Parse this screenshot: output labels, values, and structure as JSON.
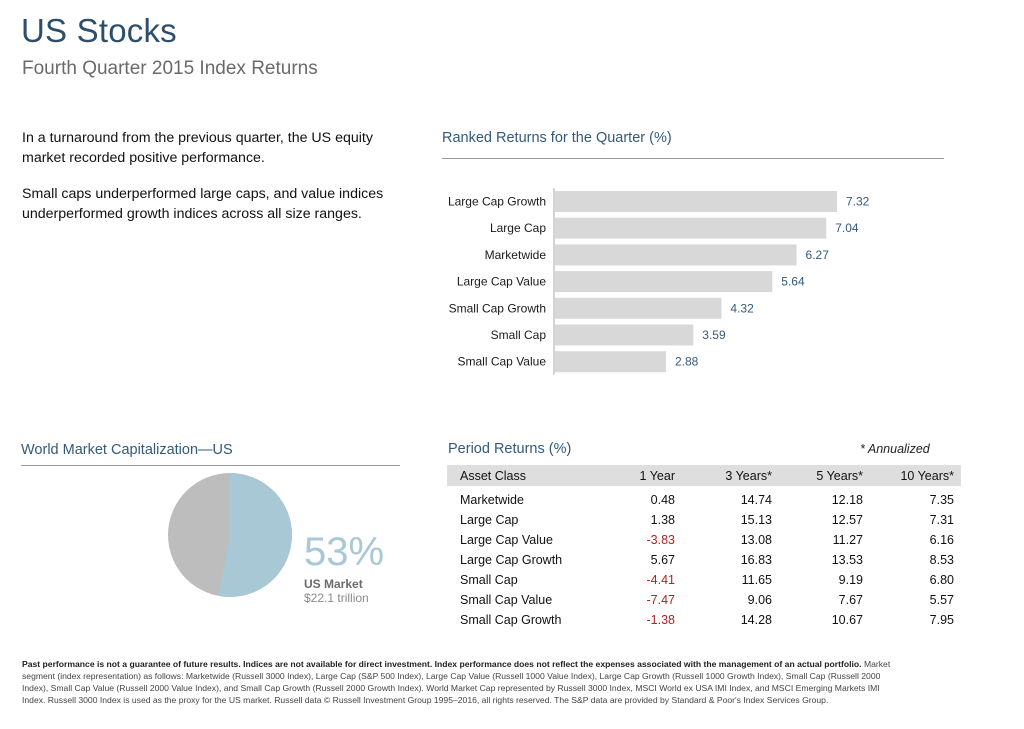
{
  "header": {
    "title": "US Stocks",
    "subtitle": "Fourth Quarter 2015 Index Returns"
  },
  "intro": {
    "p1": "In a turnaround from the previous quarter, the US equity market recorded positive performance.",
    "p2": "Small caps underperformed large caps, and value indices underperformed growth indices across all size ranges."
  },
  "ranked": {
    "heading": "Ranked Returns for the Quarter (%)"
  },
  "chart_data": {
    "type": "bar",
    "orientation": "horizontal",
    "title": "Ranked Returns for the Quarter (%)",
    "categories": [
      "Large Cap Growth",
      "Large Cap",
      "Marketwide",
      "Large Cap Value",
      "Small Cap Growth",
      "Small Cap",
      "Small Cap Value"
    ],
    "values": [
      7.32,
      7.04,
      6.27,
      5.64,
      4.32,
      3.59,
      2.88
    ],
    "value_labels": [
      "7.32",
      "7.04",
      "6.27",
      "5.64",
      "4.32",
      "3.59",
      "2.88"
    ],
    "xlim": [
      0,
      8
    ],
    "grid": false,
    "colors": {
      "bar": "#d8d8d8",
      "value_label": "#34597a",
      "axis": "#aaaaaa"
    }
  },
  "world_cap": {
    "heading": "World Market Capitalization—US",
    "percent_label": "53%",
    "percent_value": 53,
    "market_label": "US Market",
    "market_value": "$22.1 trillion",
    "colors": {
      "us": "#a8c8d6",
      "rest": "#bdbdbd",
      "percent_text": "#a8c8d6"
    }
  },
  "period": {
    "heading": "Period Returns (%)",
    "note": "* Annualized",
    "columns": [
      "Asset Class",
      "1 Year",
      "3 Years*",
      "5 Years*",
      "10 Years*"
    ],
    "rows": [
      [
        "Marketwide",
        "0.48",
        "14.74",
        "12.18",
        "7.35"
      ],
      [
        "Large Cap",
        "1.38",
        "15.13",
        "12.57",
        "7.31"
      ],
      [
        "Large Cap Value",
        "-3.83",
        "13.08",
        "11.27",
        "6.16"
      ],
      [
        "Large Cap Growth",
        "5.67",
        "16.83",
        "13.53",
        "8.53"
      ],
      [
        "Small Cap",
        "-4.41",
        "11.65",
        "9.19",
        "6.80"
      ],
      [
        "Small Cap Value",
        "-7.47",
        "9.06",
        "7.67",
        "5.57"
      ],
      [
        "Small Cap Growth",
        "-1.38",
        "14.28",
        "10.67",
        "7.95"
      ]
    ],
    "colors": {
      "negative": "#b22222",
      "header_bg": "#dedede"
    }
  },
  "footnote": {
    "bold": "Past performance is not a guarantee of future results. Indices are not available for direct investment. Index performance does not reflect the expenses associated with the management of an actual portfolio.",
    "body": "Market segment (index representation) as follows: Marketwide (Russell 3000 Index), Large Cap (S&P 500 Index), Large Cap Value (Russell 1000 Value Index), Large Cap Growth (Russell 1000 Growth Index), Small Cap (Russell 2000 Index), Small Cap Value (Russell 2000 Value Index), and Small Cap Growth (Russell 2000 Growth Index). World Market Cap represented by Russell 3000 Index, MSCI World ex USA IMI Index, and MSCI Emerging Markets IMI Index. Russell 3000 Index is used as the proxy for the US market. Russell data © Russell Investment Group 1995–2016, all rights reserved. The S&P data are provided by Standard & Poor's Index Services Group."
  }
}
